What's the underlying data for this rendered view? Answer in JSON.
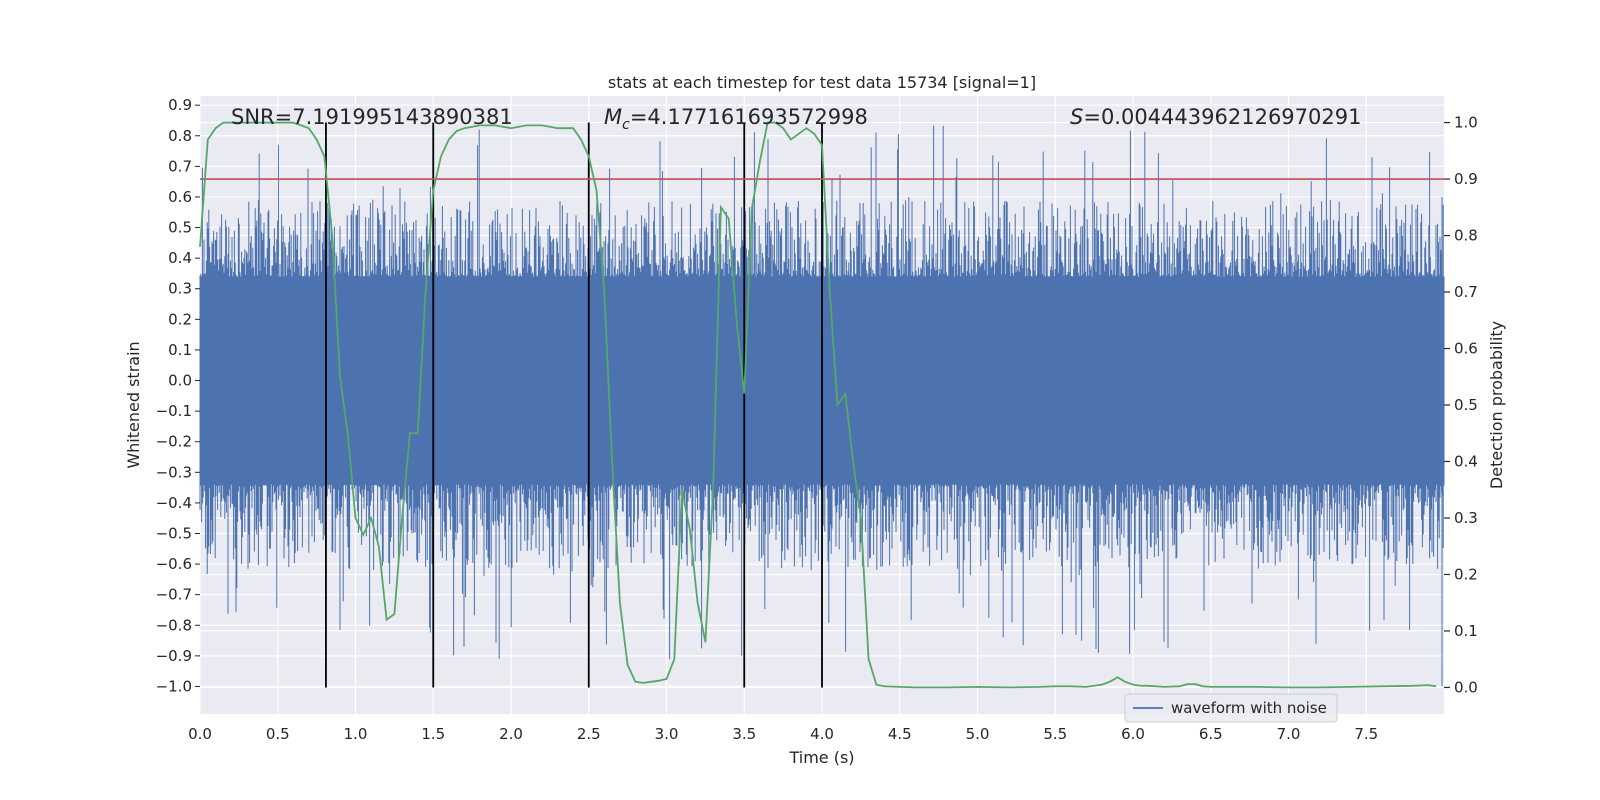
{
  "chart_data": {
    "type": "line",
    "title": "stats at each timestep for test data 15734 [signal=1]",
    "xlabel": "Time (s)",
    "ylabel": "Whitened strain",
    "y2label": "Detection probability",
    "xlim": [
      0.0,
      8.0
    ],
    "ylim": [
      -1.09,
      0.93
    ],
    "y2lim": [
      -0.047,
      1.047
    ],
    "xticks": [
      "0.0",
      "0.5",
      "1.0",
      "1.5",
      "2.0",
      "2.5",
      "3.0",
      "3.5",
      "4.0",
      "4.5",
      "5.0",
      "5.5",
      "6.0",
      "6.5",
      "7.0",
      "7.5"
    ],
    "yticks": [
      "0.9",
      "0.8",
      "0.7",
      "0.6",
      "0.5",
      "0.4",
      "0.3",
      "0.2",
      "0.1",
      "0.0",
      "−0.1",
      "−0.2",
      "−0.3",
      "−0.4",
      "−0.5",
      "−0.6",
      "−0.7",
      "−0.8",
      "−0.9",
      "−1.0"
    ],
    "y2ticks": [
      "1.0",
      "0.9",
      "0.8",
      "0.7",
      "0.6",
      "0.5",
      "0.4",
      "0.3",
      "0.2",
      "0.1",
      "0.0"
    ],
    "annotations": {
      "snr": "SNR=7.191995143890381",
      "mc_symbol": "M",
      "mc_sub": "c",
      "mc_value": "=4.177161693572998",
      "s_symbol": "S",
      "s_value": "=0.004443962126970291"
    },
    "legend": {
      "label": "waveform with noise",
      "position": "lower-right"
    },
    "threshold": {
      "value": 0.9,
      "color": "#c44e52"
    },
    "vlines": [
      0.81,
      1.5,
      2.5,
      3.5,
      4.0
    ],
    "colors": {
      "waveform": "#4c72b0",
      "probability": "#55a868",
      "vline": "#000000",
      "background": "#eaeaf2",
      "grid": "#ffffff"
    },
    "waveform": {
      "name": "waveform with noise",
      "core_amplitude": 0.28,
      "max_peak": 0.84,
      "min_peak": -1.0
    },
    "series": [
      {
        "name": "detection probability",
        "x": [
          0.0,
          0.05,
          0.1,
          0.15,
          0.2,
          0.3,
          0.4,
          0.5,
          0.6,
          0.65,
          0.7,
          0.75,
          0.8,
          0.85,
          0.9,
          0.95,
          1.0,
          1.05,
          1.1,
          1.15,
          1.2,
          1.25,
          1.3,
          1.35,
          1.4,
          1.45,
          1.5,
          1.55,
          1.6,
          1.65,
          1.7,
          1.8,
          1.9,
          2.0,
          2.1,
          2.2,
          2.3,
          2.4,
          2.45,
          2.5,
          2.55,
          2.6,
          2.65,
          2.7,
          2.75,
          2.8,
          2.85,
          2.9,
          2.95,
          3.0,
          3.05,
          3.1,
          3.15,
          3.2,
          3.25,
          3.3,
          3.35,
          3.4,
          3.45,
          3.5,
          3.55,
          3.6,
          3.65,
          3.7,
          3.75,
          3.8,
          3.85,
          3.9,
          3.95,
          4.0,
          4.05,
          4.1,
          4.15,
          4.2,
          4.25,
          4.3,
          4.35,
          4.4,
          4.5,
          4.6,
          4.8,
          5.0,
          5.2,
          5.4,
          5.5,
          5.6,
          5.7,
          5.8,
          5.85,
          5.9,
          5.95,
          6.0,
          6.05,
          6.1,
          6.2,
          6.3,
          6.35,
          6.4,
          6.45,
          6.5,
          6.6,
          6.8,
          7.0,
          7.2,
          7.4,
          7.6,
          7.8,
          7.9,
          7.95
        ],
        "values": [
          0.78,
          0.97,
          0.99,
          1.0,
          1.0,
          1.0,
          1.0,
          1.0,
          1.0,
          0.995,
          0.99,
          0.97,
          0.94,
          0.8,
          0.55,
          0.45,
          0.3,
          0.27,
          0.3,
          0.25,
          0.12,
          0.13,
          0.3,
          0.45,
          0.45,
          0.7,
          0.88,
          0.94,
          0.97,
          0.985,
          0.99,
          0.995,
          0.995,
          0.99,
          0.995,
          0.995,
          0.99,
          0.99,
          0.97,
          0.94,
          0.88,
          0.7,
          0.4,
          0.15,
          0.04,
          0.01,
          0.008,
          0.01,
          0.012,
          0.015,
          0.05,
          0.35,
          0.28,
          0.15,
          0.08,
          0.35,
          0.85,
          0.83,
          0.65,
          0.52,
          0.85,
          0.93,
          1.0,
          1.0,
          0.99,
          0.97,
          0.98,
          0.99,
          0.98,
          0.96,
          0.7,
          0.5,
          0.52,
          0.4,
          0.3,
          0.05,
          0.005,
          0.002,
          0.001,
          0.0,
          0.0,
          0.001,
          0.0,
          0.001,
          0.002,
          0.002,
          0.001,
          0.005,
          0.01,
          0.018,
          0.01,
          0.005,
          0.003,
          0.003,
          0.001,
          0.002,
          0.006,
          0.006,
          0.002,
          0.001,
          0.001,
          0.001,
          0.0,
          0.0,
          0.001,
          0.002,
          0.003,
          0.004,
          0.002
        ]
      }
    ]
  }
}
